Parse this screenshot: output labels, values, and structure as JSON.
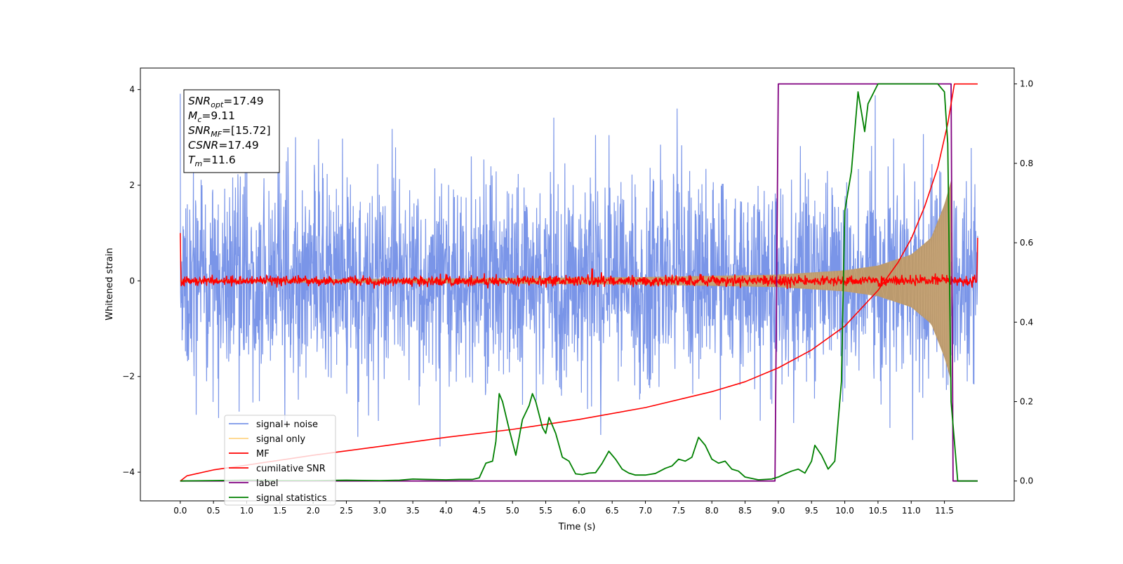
{
  "chart_data": {
    "type": "line",
    "title": "",
    "xlabel": "Time (s)",
    "ylabel": "Whitened strain",
    "y2label": "",
    "xlim": [
      -0.6,
      12.55
    ],
    "ylim": [
      -4.6,
      4.45
    ],
    "y2lim": [
      -0.05,
      1.04
    ],
    "x_ticks": [
      0.0,
      0.5,
      1.0,
      1.5,
      2.0,
      2.5,
      3.0,
      3.5,
      4.0,
      4.5,
      5.0,
      5.5,
      6.0,
      6.5,
      7.0,
      7.5,
      8.0,
      8.5,
      9.0,
      9.5,
      10.0,
      10.5,
      11.0,
      11.5
    ],
    "x_tick_labels": [
      "0.0",
      "0.5",
      "1.0",
      "1.5",
      "2.0",
      "2.5",
      "3.0",
      "3.5",
      "4.0",
      "4.5",
      "5.0",
      "5.5",
      "6.0",
      "6.5",
      "7.0",
      "7.5",
      "8.0",
      "8.5",
      "9.0",
      "9.5",
      "10.0",
      "10.5",
      "11.0",
      "11.5"
    ],
    "y_ticks": [
      -4,
      -2,
      0,
      2,
      4
    ],
    "y_tick_labels": [
      "−4",
      "−2",
      "0",
      "2",
      "4"
    ],
    "y2_ticks": [
      0.0,
      0.2,
      0.4,
      0.6,
      0.8,
      1.0
    ],
    "y2_tick_labels": [
      "0.0",
      "0.2",
      "0.4",
      "0.6",
      "0.8",
      "1.0"
    ],
    "grid": false,
    "legend_position": "lower-left",
    "info_box": {
      "lines": [
        {
          "sym": "SNR",
          "sub": "opt",
          "rest": "=17.49"
        },
        {
          "sym": "M",
          "sub": "c",
          "rest": "=9.11"
        },
        {
          "sym": "SNR",
          "sub": "MF",
          "rest": "=[15.72]"
        },
        {
          "sym": "CSNR",
          "sub": "",
          "rest": "=17.49"
        },
        {
          "sym": "T",
          "sub": "m",
          "rest": "=11.6"
        }
      ]
    },
    "series": [
      {
        "name": "signal+ noise",
        "axis": "left",
        "color": "#7a95e8",
        "description_kind": "noise",
        "x_range": [
          0.0,
          12.0
        ],
        "std": 1.0,
        "peak_max": 4.0,
        "peak_min": -4.1
      },
      {
        "name": "signal only",
        "axis": "left",
        "color": "#ffd485",
        "description_kind": "chirp",
        "x_range": [
          0.0,
          11.6
        ],
        "envelope": [
          [
            0.0,
            0.02
          ],
          [
            4.0,
            0.05
          ],
          [
            7.0,
            0.08
          ],
          [
            9.0,
            0.13
          ],
          [
            10.0,
            0.22
          ],
          [
            10.5,
            0.32
          ],
          [
            11.0,
            0.55
          ],
          [
            11.3,
            0.9
          ],
          [
            11.5,
            1.6
          ],
          [
            11.6,
            2.1
          ]
        ]
      },
      {
        "name": "MF",
        "axis": "left",
        "color": "#ff0000",
        "description_kind": "mf",
        "x_range": [
          0.0,
          12.0
        ],
        "endpoints": [
          [
            0.0,
            1.0
          ],
          [
            12.0,
            0.9
          ]
        ],
        "noise_amplitude": 0.12,
        "spikes": [
          [
            6.2,
            0.25
          ]
        ]
      },
      {
        "name": "cumilative SNR",
        "axis": "right",
        "color": "#ff0000",
        "points": [
          [
            0.0,
            0.0
          ],
          [
            0.1,
            0.013
          ],
          [
            0.5,
            0.028
          ],
          [
            1.0,
            0.04
          ],
          [
            2.0,
            0.065
          ],
          [
            3.0,
            0.087
          ],
          [
            4.0,
            0.11
          ],
          [
            5.0,
            0.13
          ],
          [
            6.0,
            0.155
          ],
          [
            7.0,
            0.185
          ],
          [
            8.0,
            0.225
          ],
          [
            8.5,
            0.25
          ],
          [
            9.0,
            0.285
          ],
          [
            9.5,
            0.33
          ],
          [
            10.0,
            0.39
          ],
          [
            10.5,
            0.48
          ],
          [
            10.8,
            0.55
          ],
          [
            11.0,
            0.61
          ],
          [
            11.2,
            0.69
          ],
          [
            11.4,
            0.79
          ],
          [
            11.55,
            0.9
          ],
          [
            11.62,
            0.97
          ],
          [
            11.65,
            1.0
          ],
          [
            12.0,
            1.0
          ]
        ]
      },
      {
        "name": "label",
        "axis": "right",
        "color": "#800080",
        "points": [
          [
            0.0,
            0.0
          ],
          [
            8.95,
            0.0
          ],
          [
            9.0,
            1.0
          ],
          [
            11.6,
            1.0
          ],
          [
            11.63,
            0.0
          ],
          [
            12.0,
            0.0
          ]
        ]
      },
      {
        "name": "signal statistics",
        "axis": "right",
        "color": "#008000",
        "points": [
          [
            0.0,
            0.0
          ],
          [
            0.5,
            0.001
          ],
          [
            1.0,
            0.002
          ],
          [
            1.5,
            0.001
          ],
          [
            2.0,
            0.001
          ],
          [
            2.5,
            0.002
          ],
          [
            3.0,
            0.001
          ],
          [
            3.3,
            0.002
          ],
          [
            3.5,
            0.005
          ],
          [
            3.7,
            0.004
          ],
          [
            4.0,
            0.003
          ],
          [
            4.2,
            0.004
          ],
          [
            4.4,
            0.004
          ],
          [
            4.5,
            0.008
          ],
          [
            4.6,
            0.045
          ],
          [
            4.7,
            0.05
          ],
          [
            4.75,
            0.1
          ],
          [
            4.8,
            0.22
          ],
          [
            4.85,
            0.2
          ],
          [
            4.95,
            0.13
          ],
          [
            5.05,
            0.065
          ],
          [
            5.15,
            0.155
          ],
          [
            5.25,
            0.19
          ],
          [
            5.3,
            0.22
          ],
          [
            5.35,
            0.2
          ],
          [
            5.45,
            0.135
          ],
          [
            5.5,
            0.12
          ],
          [
            5.55,
            0.16
          ],
          [
            5.65,
            0.12
          ],
          [
            5.75,
            0.06
          ],
          [
            5.85,
            0.05
          ],
          [
            5.95,
            0.018
          ],
          [
            6.05,
            0.016
          ],
          [
            6.15,
            0.02
          ],
          [
            6.25,
            0.021
          ],
          [
            6.35,
            0.045
          ],
          [
            6.45,
            0.075
          ],
          [
            6.55,
            0.055
          ],
          [
            6.65,
            0.03
          ],
          [
            6.75,
            0.02
          ],
          [
            6.85,
            0.015
          ],
          [
            7.0,
            0.015
          ],
          [
            7.15,
            0.019
          ],
          [
            7.3,
            0.032
          ],
          [
            7.4,
            0.038
          ],
          [
            7.5,
            0.055
          ],
          [
            7.6,
            0.05
          ],
          [
            7.7,
            0.06
          ],
          [
            7.8,
            0.11
          ],
          [
            7.9,
            0.09
          ],
          [
            8.0,
            0.055
          ],
          [
            8.1,
            0.045
          ],
          [
            8.2,
            0.05
          ],
          [
            8.3,
            0.03
          ],
          [
            8.4,
            0.025
          ],
          [
            8.5,
            0.01
          ],
          [
            8.7,
            0.003
          ],
          [
            8.9,
            0.005
          ],
          [
            9.0,
            0.01
          ],
          [
            9.1,
            0.018
          ],
          [
            9.2,
            0.025
          ],
          [
            9.3,
            0.03
          ],
          [
            9.4,
            0.02
          ],
          [
            9.5,
            0.05
          ],
          [
            9.55,
            0.09
          ],
          [
            9.65,
            0.065
          ],
          [
            9.75,
            0.03
          ],
          [
            9.85,
            0.05
          ],
          [
            9.95,
            0.25
          ],
          [
            10.0,
            0.68
          ],
          [
            10.1,
            0.78
          ],
          [
            10.2,
            0.98
          ],
          [
            10.3,
            0.88
          ],
          [
            10.35,
            0.95
          ],
          [
            10.5,
            1.0
          ],
          [
            10.8,
            1.0
          ],
          [
            11.0,
            1.0
          ],
          [
            11.2,
            1.0
          ],
          [
            11.4,
            1.0
          ],
          [
            11.5,
            0.98
          ],
          [
            11.55,
            0.85
          ],
          [
            11.6,
            0.2
          ],
          [
            11.7,
            0.0
          ],
          [
            12.0,
            0.0
          ]
        ]
      }
    ]
  }
}
